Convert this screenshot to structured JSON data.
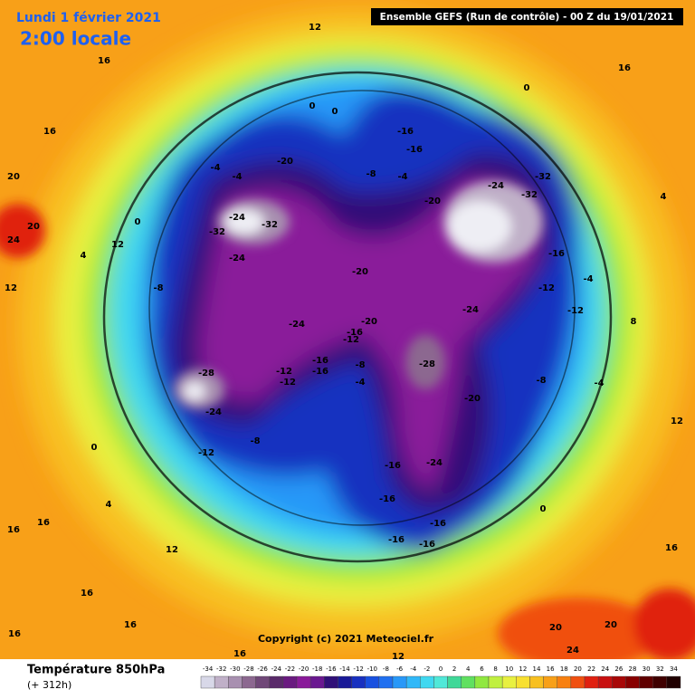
{
  "header": {
    "date": "Lundi 1 février 2021",
    "time": "2:00 locale",
    "run": "Ensemble GEFS  (Run de contrôle)  - 00 Z du 19/01/2021"
  },
  "footer": {
    "title": "Température 850hPa",
    "lead": "(+ 312h)",
    "copyright": "Copyright (c) 2021 Meteociel.fr"
  },
  "colorbar": {
    "ticks": [
      -34,
      -32,
      -30,
      -28,
      -26,
      -24,
      -22,
      -20,
      -18,
      -16,
      -14,
      -12,
      -10,
      -8,
      -6,
      -4,
      -2,
      0,
      2,
      4,
      6,
      8,
      10,
      12,
      14,
      16,
      18,
      20,
      22,
      24,
      26,
      28,
      30,
      32,
      34
    ],
    "colors": [
      "#d8d8e8",
      "#c0b0c8",
      "#a890b0",
      "#8c6890",
      "#704878",
      "#5a2a6a",
      "#6a1a80",
      "#8a1a9a",
      "#6a1890",
      "#301078",
      "#1a1a98",
      "#1830c0",
      "#1850e0",
      "#2070f0",
      "#2898f8",
      "#30b8f8",
      "#40d8f0",
      "#50e8d8",
      "#40d898",
      "#60e060",
      "#90e840",
      "#c0f040",
      "#e8f040",
      "#f8e030",
      "#f8c020",
      "#f8a018",
      "#f88010",
      "#f05010",
      "#e02010",
      "#c81010",
      "#a80808",
      "#880000",
      "#600000",
      "#400000",
      "#200000"
    ]
  },
  "contour_labels": [
    12,
    16,
    16,
    20,
    20,
    24,
    0,
    0,
    0,
    -16,
    -16,
    -20,
    -4,
    -4,
    -8,
    -4,
    -20,
    -24,
    -32,
    -32,
    -24,
    -32,
    -32,
    -24,
    0,
    12,
    4,
    12,
    -8,
    -20,
    -24,
    -20,
    -24,
    -16,
    -12,
    -28,
    -16,
    -12,
    -12,
    -16,
    -8,
    -4,
    -28,
    -20,
    -24,
    -8,
    -12,
    0,
    -16,
    -24,
    -16,
    -16,
    -16,
    -16,
    4,
    12,
    16,
    16,
    16,
    16,
    16,
    12,
    20,
    20,
    24,
    16,
    12,
    8,
    4,
    16,
    16,
    0,
    -4,
    -12,
    -12,
    -4,
    -16,
    -8
  ]
}
